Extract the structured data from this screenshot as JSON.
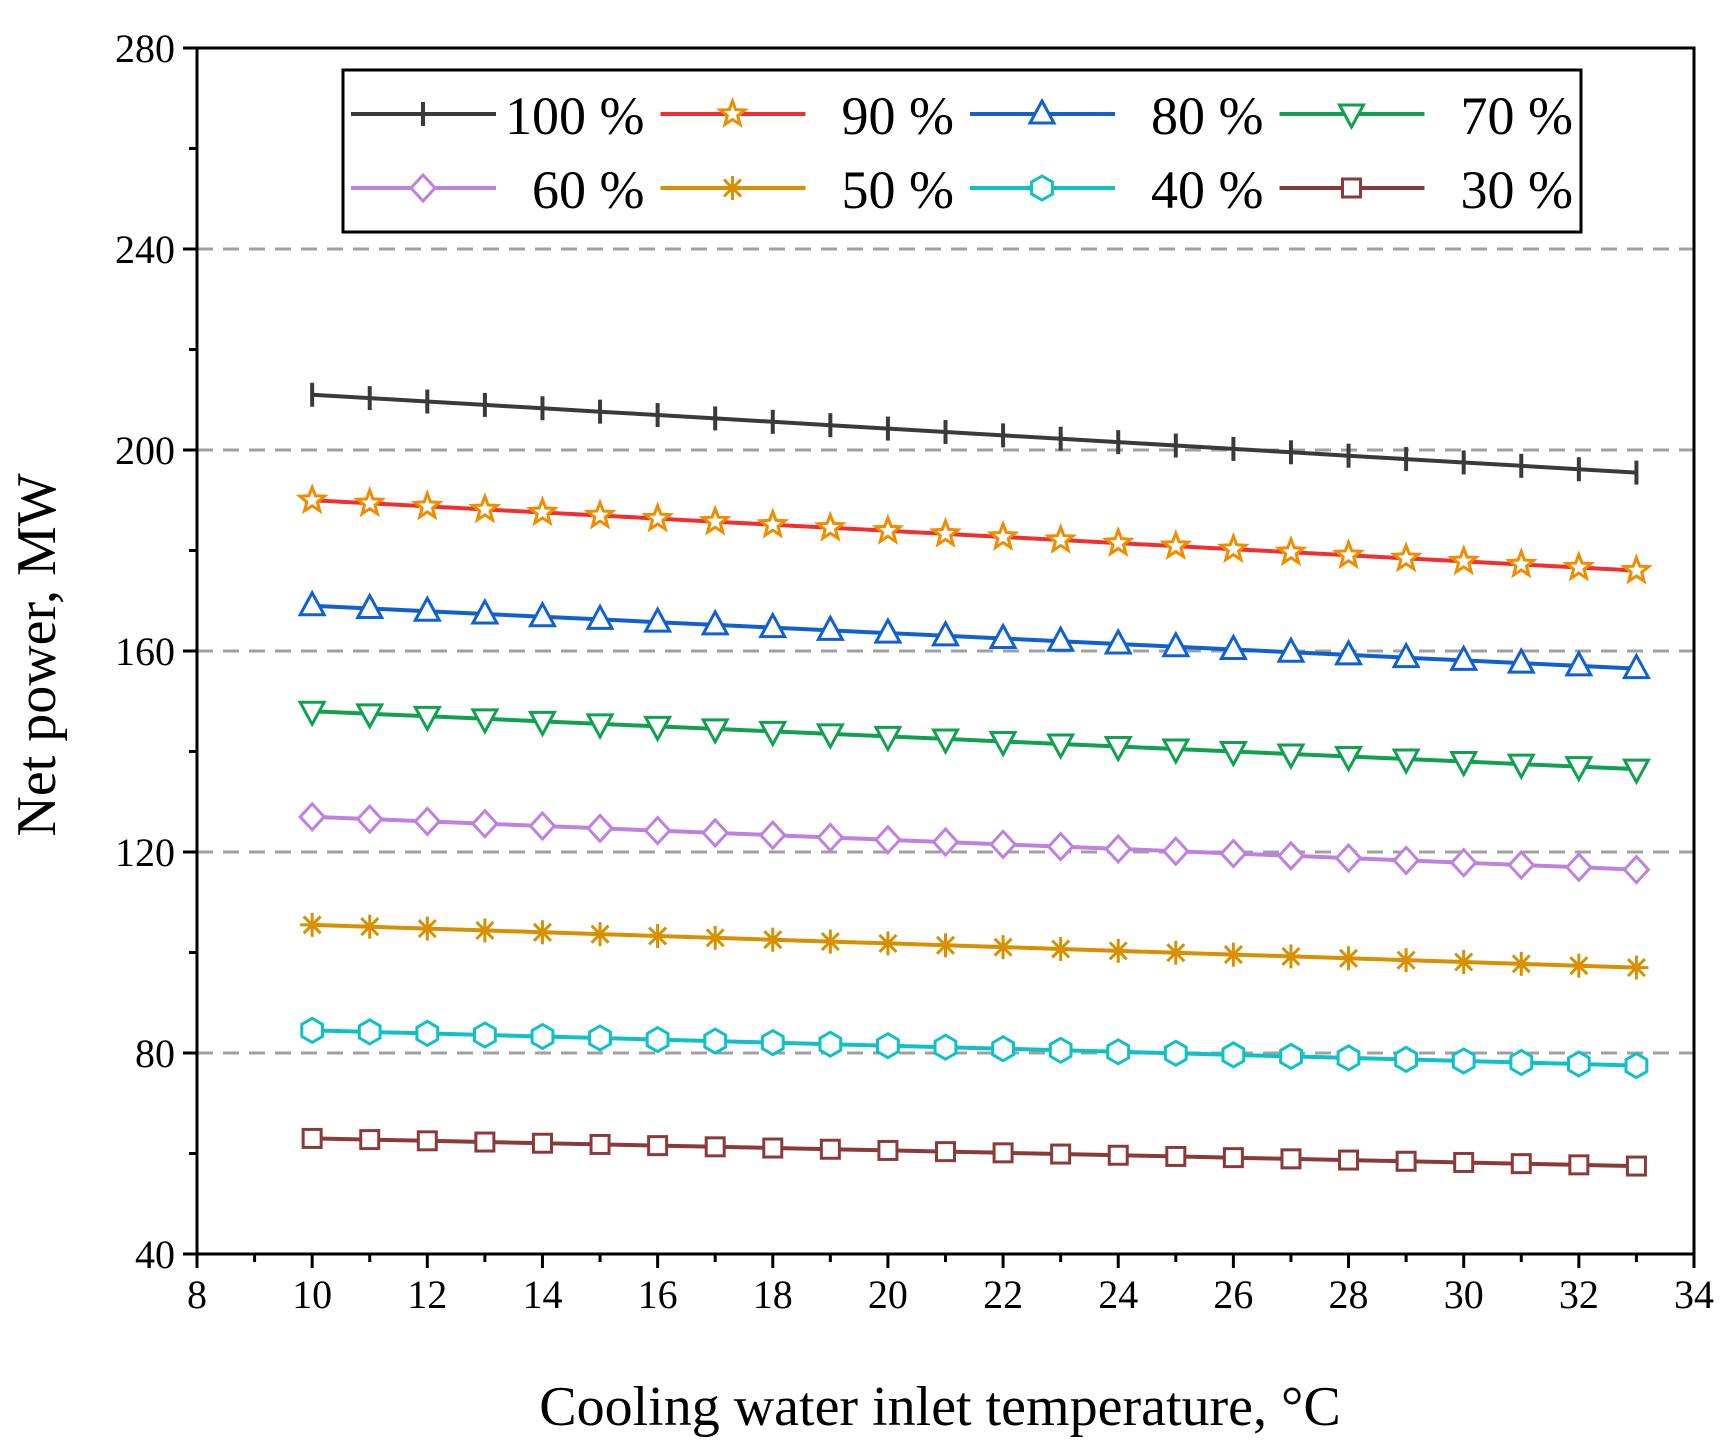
{
  "chart_data": {
    "type": "line",
    "title": "",
    "xlabel": "Cooling water inlet temperature, °C",
    "ylabel": "Net power, MW",
    "xlim": [
      8,
      34
    ],
    "ylim": [
      40,
      280
    ],
    "xticks": [
      8,
      10,
      12,
      14,
      16,
      18,
      20,
      22,
      24,
      26,
      28,
      30,
      32,
      34
    ],
    "yticks": [
      40,
      80,
      120,
      160,
      200,
      240,
      280
    ],
    "grid": "horizontal dashed",
    "legend_position": "top",
    "x": [
      10,
      11,
      12,
      13,
      14,
      15,
      16,
      17,
      18,
      19,
      20,
      21,
      22,
      23,
      24,
      25,
      26,
      27,
      28,
      29,
      30,
      31,
      32,
      33
    ],
    "series": [
      {
        "name": "100 %",
        "color": "#3a3a3a",
        "marker": "vline",
        "start": 211.0,
        "end": 195.5
      },
      {
        "name": "90 %",
        "color": "#f03030",
        "marker_color": "#f08c00",
        "marker": "star",
        "start": 190.0,
        "end": 176.0
      },
      {
        "name": "80 %",
        "color": "#1060d0",
        "marker": "triangle-up",
        "start": 169.0,
        "end": 156.5
      },
      {
        "name": "70 %",
        "color": "#10a050",
        "marker": "triangle-down",
        "start": 148.0,
        "end": 136.5
      },
      {
        "name": " 60 %",
        "color": "#c080e0",
        "marker": "diamond",
        "start": 127.0,
        "end": 116.5
      },
      {
        "name": "50 %",
        "color": "#d89000",
        "marker": "asterisk",
        "start": 105.5,
        "end": 97.0
      },
      {
        "name": "40 %",
        "color": "#10c0c8",
        "marker": "hexagon",
        "start": 84.5,
        "end": 77.5
      },
      {
        "name": "30 %",
        "color": "#8b3a3a",
        "marker": "square",
        "start": 63.0,
        "end": 57.5
      }
    ]
  }
}
